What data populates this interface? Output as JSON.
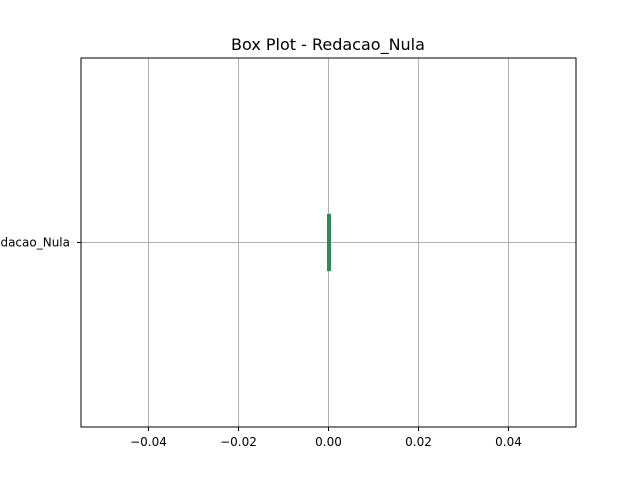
{
  "chart_data": {
    "type": "box",
    "orientation": "horizontal",
    "title": "Box Plot - Redacao_Nula",
    "categories": [
      "Redacao_Nula"
    ],
    "boxes": [
      {
        "category": "Redacao_Nula",
        "min": 0.0,
        "q1": 0.0,
        "median": 0.0,
        "q3": 0.0,
        "max": 0.0
      }
    ],
    "xlim": [
      -0.055,
      0.055
    ],
    "x_ticks": [
      -0.04,
      -0.02,
      0.0,
      0.02,
      0.04
    ],
    "x_tick_labels": [
      "−0.04",
      "−0.02",
      "0.00",
      "0.02",
      "0.04"
    ],
    "grid": true,
    "colors": {
      "box": "#2e8b57",
      "grid": "#b0b0b0",
      "axes": "#000000"
    }
  }
}
